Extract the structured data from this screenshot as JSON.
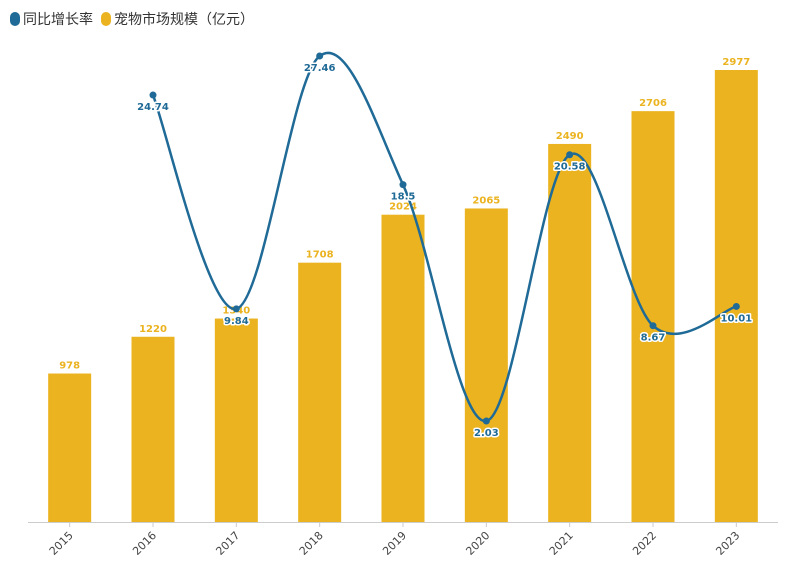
{
  "chart_data": {
    "type": "bar",
    "categories": [
      "2015",
      "2016",
      "2017",
      "2018",
      "2019",
      "2020",
      "2021",
      "2022",
      "2023"
    ],
    "series": [
      {
        "name": "同比增长率",
        "type": "line",
        "color": "#1f6a96",
        "values": [
          null,
          24.74,
          9.84,
          27.46,
          18.5,
          2.03,
          20.58,
          8.67,
          10.01
        ]
      },
      {
        "name": "宠物市场规模（亿元）",
        "type": "bar",
        "color": "#ebb31f",
        "values": [
          978,
          1220,
          1340,
          1708,
          2024,
          2065,
          2490,
          2706,
          2977
        ]
      }
    ],
    "bar_axis_range": [
      0,
      3500
    ],
    "line_axis_range": [
      0,
      30
    ],
    "legend_position": "top-left",
    "grid": false
  }
}
